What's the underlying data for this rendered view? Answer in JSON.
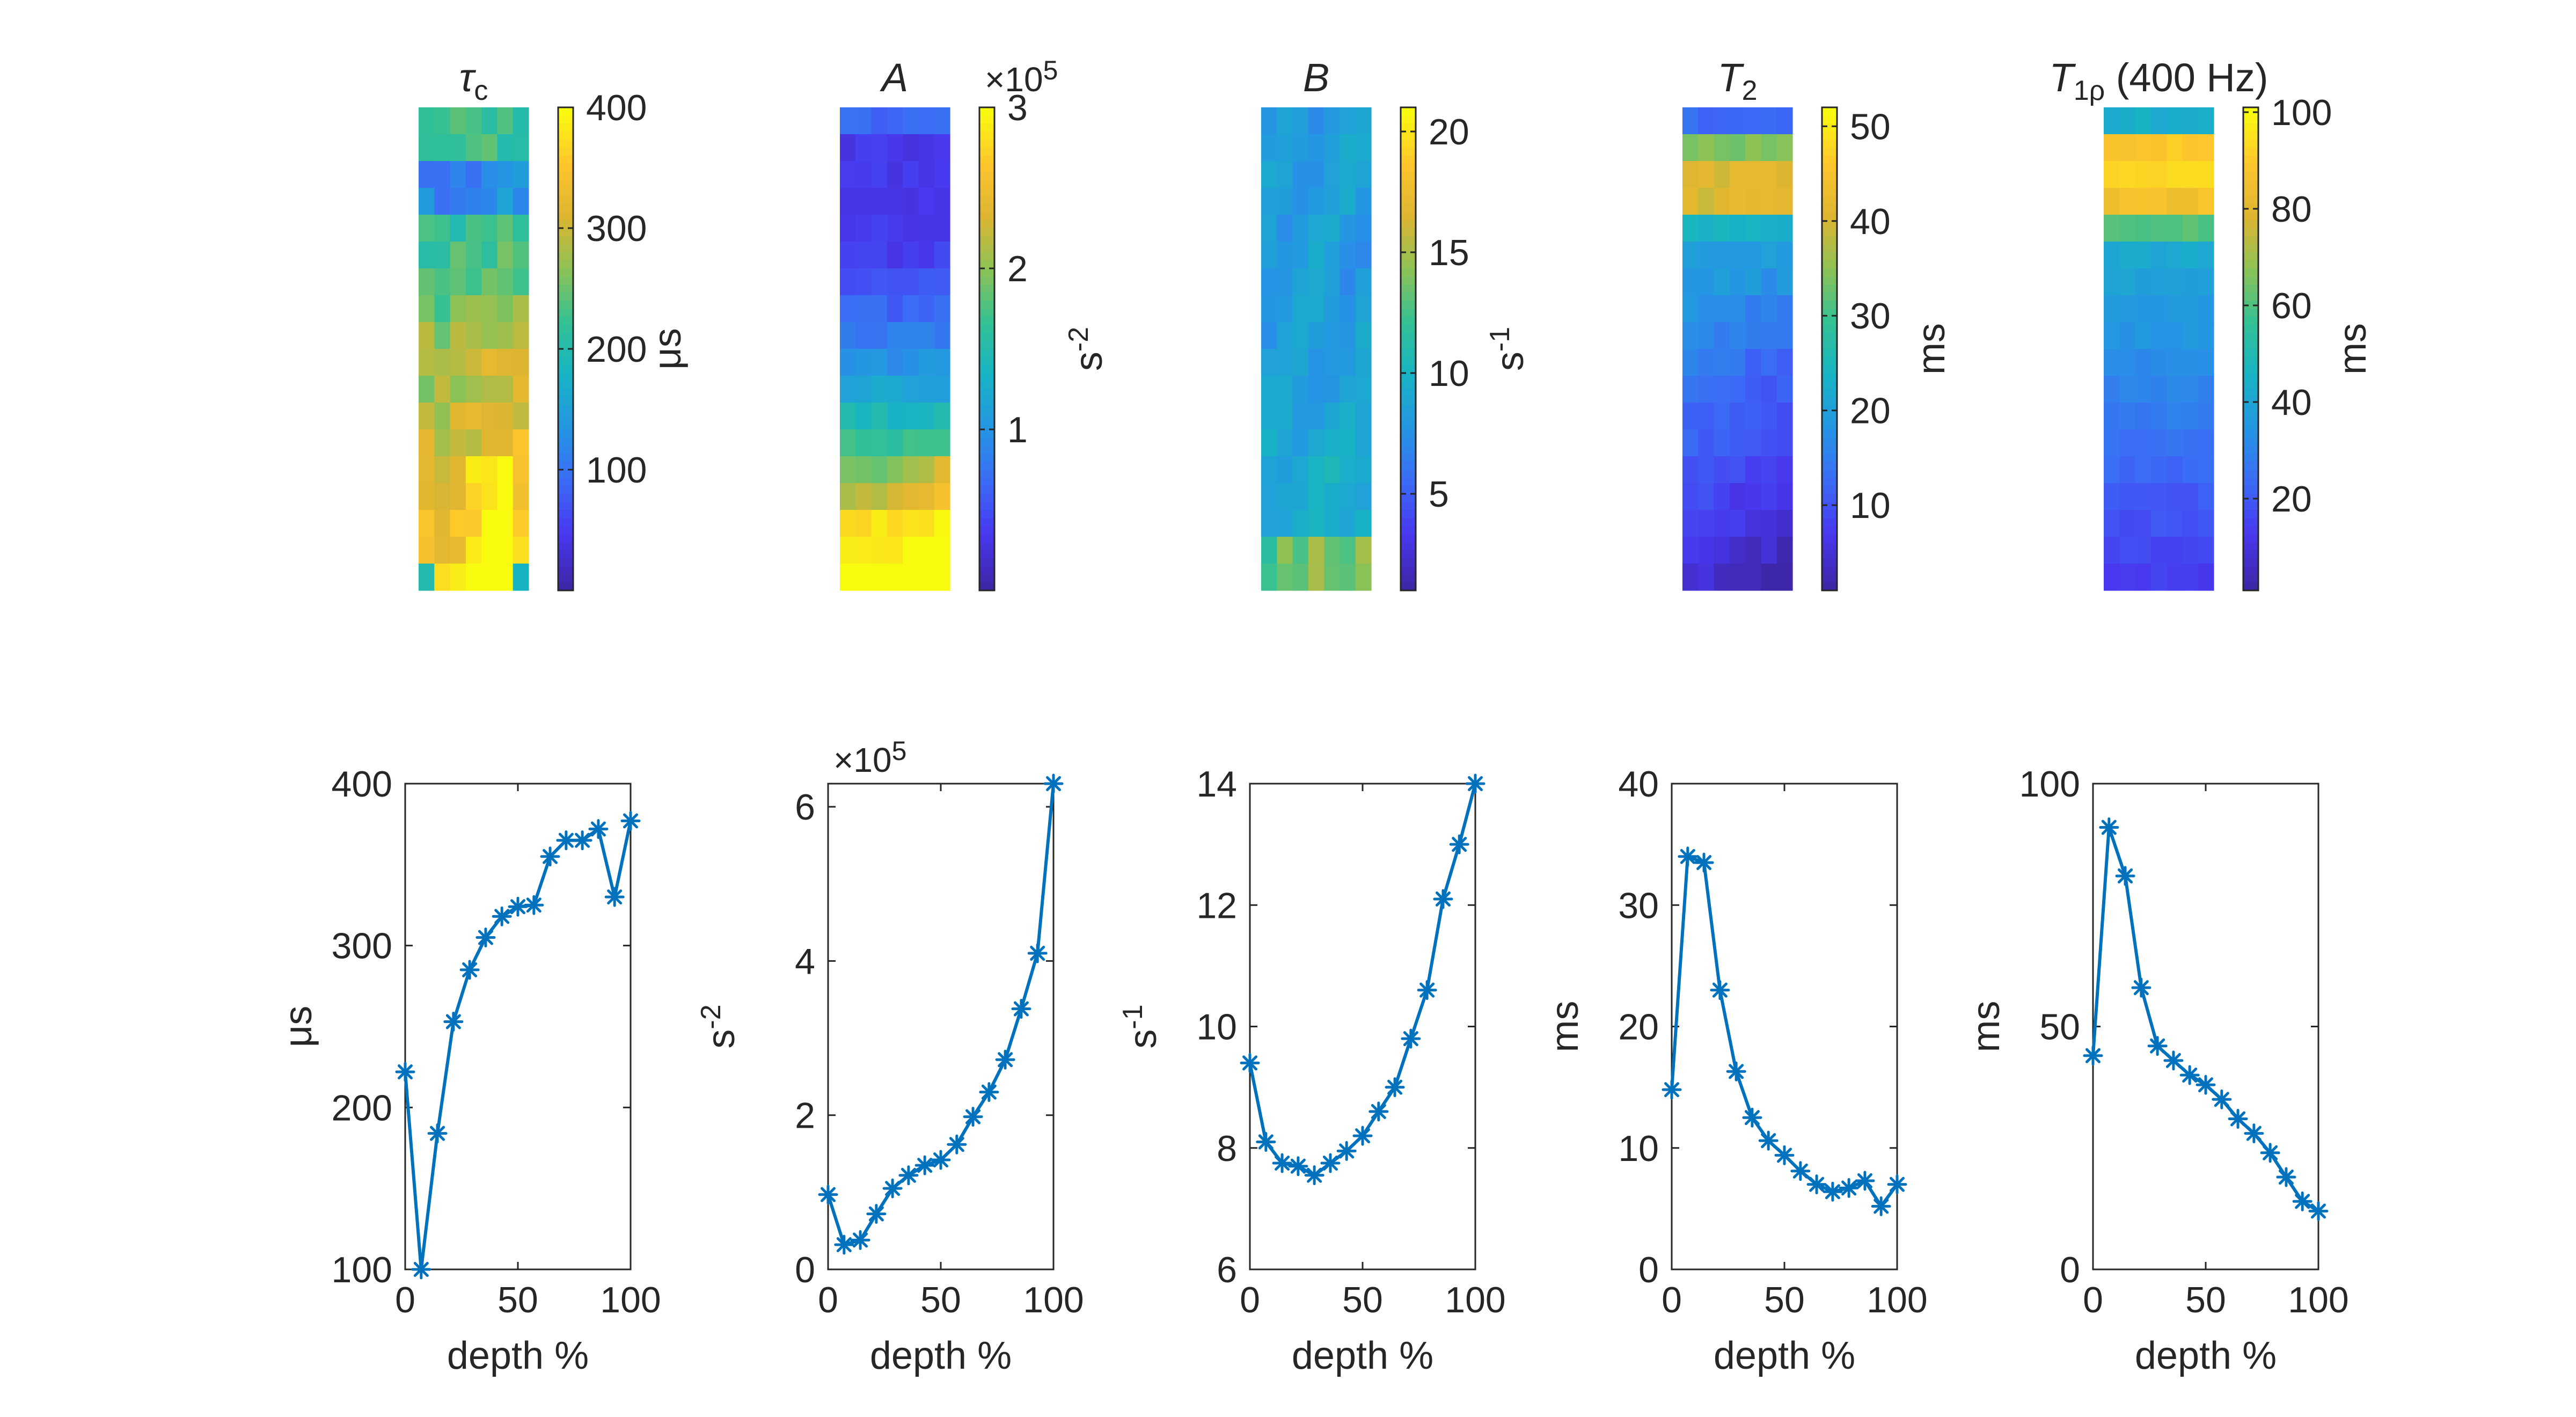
{
  "colormap": [
    "#3e26a8",
    "#4838f0",
    "#3b6cf6",
    "#2596e3",
    "#17b3c4",
    "#32c194",
    "#8cc256",
    "#ddb531",
    "#fdc52d",
    "#f9fb0e"
  ],
  "colors": {
    "line": "#0072bd",
    "axis": "#262626",
    "background": "#ffffff"
  },
  "maps": [
    {
      "title": "τc",
      "title_sym": "τ",
      "title_sub": "c",
      "unit_label": "μs",
      "cbar_ticks": [
        "100",
        "200",
        "300",
        "400"
      ],
      "cbar_tick_values": [
        100,
        200,
        300,
        400
      ],
      "clim": [
        0,
        400
      ],
      "exponent": "",
      "field": "tau",
      "grid": {
        "rows": 18,
        "cols": 7
      }
    },
    {
      "title": "A",
      "title_sym": "A",
      "title_sub": "",
      "unit_label": "s-2",
      "unit_base": "s",
      "unit_sup": "-2",
      "cbar_ticks": [
        "1",
        "2",
        "3"
      ],
      "cbar_tick_values": [
        1,
        2,
        3
      ],
      "clim": [
        0,
        3
      ],
      "exponent": "×10",
      "exponent_sup": "5",
      "field": "A",
      "grid": {
        "rows": 18,
        "cols": 7
      }
    },
    {
      "title": "B",
      "title_sym": "B",
      "title_sub": "",
      "unit_label": "s-1",
      "unit_base": "s",
      "unit_sup": "-1",
      "cbar_ticks": [
        "5",
        "10",
        "15",
        "20"
      ],
      "cbar_tick_values": [
        5,
        10,
        15,
        20
      ],
      "clim": [
        1,
        21
      ],
      "exponent": "",
      "field": "B",
      "grid": {
        "rows": 18,
        "cols": 7
      }
    },
    {
      "title": "T2",
      "title_sym": "T",
      "title_sub": "2",
      "unit_label": "ms",
      "cbar_ticks": [
        "10",
        "20",
        "30",
        "40",
        "50"
      ],
      "cbar_tick_values": [
        10,
        20,
        30,
        40,
        50
      ],
      "clim": [
        1,
        52
      ],
      "exponent": "",
      "field": "T2",
      "grid": {
        "rows": 18,
        "cols": 7
      }
    },
    {
      "title": "T1ρ (400 Hz)",
      "title_sym": "T",
      "title_sub": "1ρ",
      "title_rest": " (400 Hz)",
      "unit_label": "ms",
      "cbar_ticks": [
        "20",
        "40",
        "60",
        "80",
        "100"
      ],
      "cbar_tick_values": [
        20,
        40,
        60,
        80,
        100
      ],
      "clim": [
        1,
        101
      ],
      "exponent": "",
      "field": "T1rho",
      "grid": {
        "rows": 18,
        "cols": 7
      }
    }
  ],
  "chart_data": [
    {
      "type": "line",
      "marker": "asterisk",
      "xlabel": "depth %",
      "ylabel": "μs",
      "xlim": [
        0,
        100
      ],
      "ylim": [
        100,
        400
      ],
      "xticks": [
        "0",
        "50",
        "100"
      ],
      "xtick_values": [
        0,
        50,
        100
      ],
      "yticks": [
        "100",
        "200",
        "300",
        "400"
      ],
      "ytick_values": [
        100,
        200,
        300,
        400
      ],
      "exponent": "",
      "x": [
        0,
        7.1,
        14.3,
        21.4,
        28.6,
        35.7,
        42.9,
        50,
        57.1,
        64.3,
        71.4,
        78.6,
        85.7,
        92.9,
        100
      ],
      "values": [
        222,
        100,
        184,
        253,
        285,
        305,
        318,
        324,
        325,
        355,
        365,
        365,
        372,
        330,
        377
      ]
    },
    {
      "type": "line",
      "marker": "asterisk",
      "xlabel": "depth %",
      "ylabel": "s-2",
      "ylabel_base": "s",
      "ylabel_sup": "-2",
      "xlim": [
        0,
        100
      ],
      "ylim": [
        0,
        6.3
      ],
      "xticks": [
        "0",
        "50",
        "100"
      ],
      "xtick_values": [
        0,
        50,
        100
      ],
      "yticks": [
        "0",
        "2",
        "4",
        "6"
      ],
      "ytick_values": [
        0,
        2,
        4,
        6
      ],
      "exponent": "×10",
      "exponent_sup": "5",
      "x": [
        0,
        7.1,
        14.3,
        21.4,
        28.6,
        35.7,
        42.9,
        50,
        57.1,
        64.3,
        71.4,
        78.6,
        85.7,
        92.9,
        100
      ],
      "values": [
        0.97,
        0.32,
        0.38,
        0.72,
        1.05,
        1.22,
        1.35,
        1.42,
        1.62,
        1.98,
        2.3,
        2.72,
        3.38,
        4.1,
        6.3
      ]
    },
    {
      "type": "line",
      "marker": "asterisk",
      "xlabel": "depth %",
      "ylabel": "s-1",
      "ylabel_base": "s",
      "ylabel_sup": "-1",
      "xlim": [
        0,
        100
      ],
      "ylim": [
        6,
        14
      ],
      "xticks": [
        "0",
        "50",
        "100"
      ],
      "xtick_values": [
        0,
        50,
        100
      ],
      "yticks": [
        "6",
        "8",
        "10",
        "12",
        "14"
      ],
      "ytick_values": [
        6,
        8,
        10,
        12,
        14
      ],
      "exponent": "",
      "x": [
        0,
        7.1,
        14.3,
        21.4,
        28.6,
        35.7,
        42.9,
        50,
        57.1,
        64.3,
        71.4,
        78.6,
        85.7,
        92.9,
        100
      ],
      "values": [
        9.4,
        8.1,
        7.75,
        7.7,
        7.55,
        7.75,
        7.95,
        8.2,
        8.6,
        9.0,
        9.8,
        10.6,
        12.1,
        13.0,
        14.0
      ]
    },
    {
      "type": "line",
      "marker": "asterisk",
      "xlabel": "depth %",
      "ylabel": "ms",
      "xlim": [
        0,
        100
      ],
      "ylim": [
        0,
        40
      ],
      "xticks": [
        "0",
        "50",
        "100"
      ],
      "xtick_values": [
        0,
        50,
        100
      ],
      "yticks": [
        "0",
        "10",
        "20",
        "30",
        "40"
      ],
      "ytick_values": [
        0,
        10,
        20,
        30,
        40
      ],
      "exponent": "",
      "x": [
        0,
        7.1,
        14.3,
        21.4,
        28.6,
        35.7,
        42.9,
        50,
        57.1,
        64.3,
        71.4,
        78.6,
        85.7,
        92.9,
        100
      ],
      "values": [
        14.8,
        34.0,
        33.5,
        23.0,
        16.3,
        12.5,
        10.6,
        9.4,
        8.1,
        7.0,
        6.4,
        6.7,
        7.3,
        5.2,
        7.0
      ]
    },
    {
      "type": "line",
      "marker": "asterisk",
      "xlabel": "depth %",
      "ylabel": "ms",
      "xlim": [
        0,
        100
      ],
      "ylim": [
        0,
        100
      ],
      "xticks": [
        "0",
        "50",
        "100"
      ],
      "xtick_values": [
        0,
        50,
        100
      ],
      "yticks": [
        "0",
        "50",
        "100"
      ],
      "ytick_values": [
        0,
        50,
        100
      ],
      "exponent": "",
      "x": [
        0,
        7.1,
        14.3,
        21.4,
        28.6,
        35.7,
        42.9,
        50,
        57.1,
        64.3,
        71.4,
        78.6,
        85.7,
        92.9,
        100
      ],
      "values": [
        44,
        91,
        81,
        58,
        46,
        43,
        40,
        38,
        35,
        31,
        28,
        24,
        19,
        14,
        12
      ]
    }
  ]
}
